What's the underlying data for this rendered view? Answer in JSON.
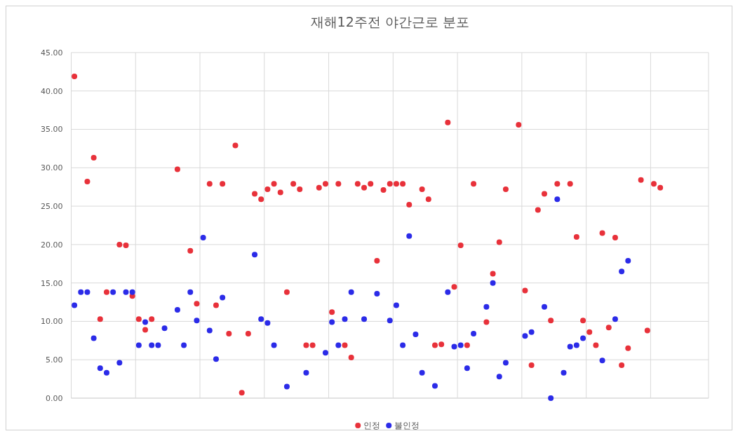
{
  "chart_data": {
    "type": "scatter",
    "title": "재해12주전 야간근로 분포",
    "categories": [
      null,
      null,
      null,
      null,
      null,
      null,
      null,
      null,
      null,
      null,
      null,
      null,
      null,
      null,
      null,
      null,
      null,
      null,
      null,
      null,
      null,
      null,
      null,
      null,
      null,
      null,
      null,
      null,
      null,
      null,
      null,
      null,
      null,
      null,
      null,
      null,
      null,
      null,
      null,
      null,
      null,
      null,
      null,
      null,
      null,
      null,
      null,
      null,
      null,
      null,
      null,
      null,
      null,
      null,
      null,
      null,
      null,
      null,
      null,
      null,
      null,
      null,
      null,
      null,
      null,
      null,
      null,
      null,
      null,
      null,
      null,
      null,
      null,
      null,
      null,
      null,
      null,
      null,
      null,
      null,
      null,
      null,
      null,
      null,
      null,
      null,
      null,
      null,
      null,
      null,
      null,
      null,
      null,
      null,
      null,
      null,
      null,
      null,
      null
    ],
    "ylim": [
      0,
      45
    ],
    "yticks": [
      {
        "value": 0,
        "label": "0.00"
      },
      {
        "value": 5,
        "label": "5.00"
      },
      {
        "value": 10,
        "label": "10.00"
      },
      {
        "value": 15,
        "label": "15.00"
      },
      {
        "value": 20,
        "label": "20.00"
      },
      {
        "value": 25,
        "label": "25.00"
      },
      {
        "value": 30,
        "label": "30.00"
      },
      {
        "value": 35,
        "label": "35.00"
      },
      {
        "value": 40,
        "label": "40.00"
      },
      {
        "value": 45,
        "label": "45.00"
      }
    ],
    "tick_labels": "y",
    "grid": true,
    "legend": "bottom",
    "marker": "circle",
    "series": [
      {
        "name": "인정",
        "color": "#e8313a",
        "values": [
          41.9,
          null,
          28.2,
          31.3,
          10.3,
          13.8,
          null,
          20.0,
          19.9,
          13.3,
          10.3,
          8.9,
          10.3,
          null,
          null,
          null,
          29.8,
          null,
          19.2,
          12.3,
          null,
          27.9,
          12.1,
          27.9,
          8.4,
          32.9,
          0.7,
          8.4,
          26.6,
          25.9,
          27.2,
          27.9,
          26.8,
          13.8,
          27.9,
          27.2,
          6.9,
          6.9,
          27.4,
          27.9,
          11.2,
          27.9,
          6.9,
          5.3,
          27.9,
          27.4,
          27.9,
          17.9,
          27.1,
          27.9,
          27.9,
          27.9,
          25.2,
          null,
          27.2,
          25.9,
          6.9,
          7.0,
          35.9,
          14.5,
          19.9,
          6.9,
          27.9,
          null,
          9.9,
          16.2,
          20.3,
          27.2,
          null,
          35.6,
          14.0,
          4.3,
          24.5,
          26.6,
          10.1,
          27.9,
          null,
          27.9,
          21.0,
          10.1,
          8.6,
          6.9,
          21.5,
          9.2,
          20.9,
          4.3,
          6.5,
          null,
          28.4,
          8.8,
          27.9,
          27.4,
          null,
          null,
          null,
          null,
          null,
          null,
          null
        ]
      },
      {
        "name": "불인정",
        "color": "#2b2be8",
        "values": [
          12.1,
          13.8,
          13.8,
          7.8,
          3.9,
          3.3,
          13.8,
          4.6,
          13.8,
          13.8,
          6.9,
          9.9,
          6.9,
          6.9,
          9.1,
          null,
          11.5,
          6.9,
          13.8,
          10.1,
          20.9,
          8.8,
          5.1,
          13.1,
          null,
          null,
          null,
          null,
          18.7,
          10.3,
          9.8,
          6.9,
          null,
          1.5,
          null,
          null,
          3.3,
          null,
          null,
          5.9,
          9.9,
          6.9,
          10.3,
          13.8,
          null,
          10.3,
          null,
          13.6,
          null,
          10.1,
          12.1,
          6.9,
          21.1,
          8.3,
          3.3,
          null,
          1.6,
          null,
          13.8,
          6.7,
          6.9,
          3.9,
          8.4,
          null,
          11.9,
          15.0,
          2.8,
          4.6,
          null,
          null,
          8.1,
          8.6,
          null,
          11.9,
          0.0,
          25.9,
          3.3,
          6.7,
          6.9,
          7.8,
          null,
          null,
          4.9,
          null,
          10.3,
          16.5,
          17.9,
          null,
          null,
          null,
          null,
          null,
          null,
          null,
          null,
          null,
          null,
          null,
          null
        ]
      }
    ]
  }
}
